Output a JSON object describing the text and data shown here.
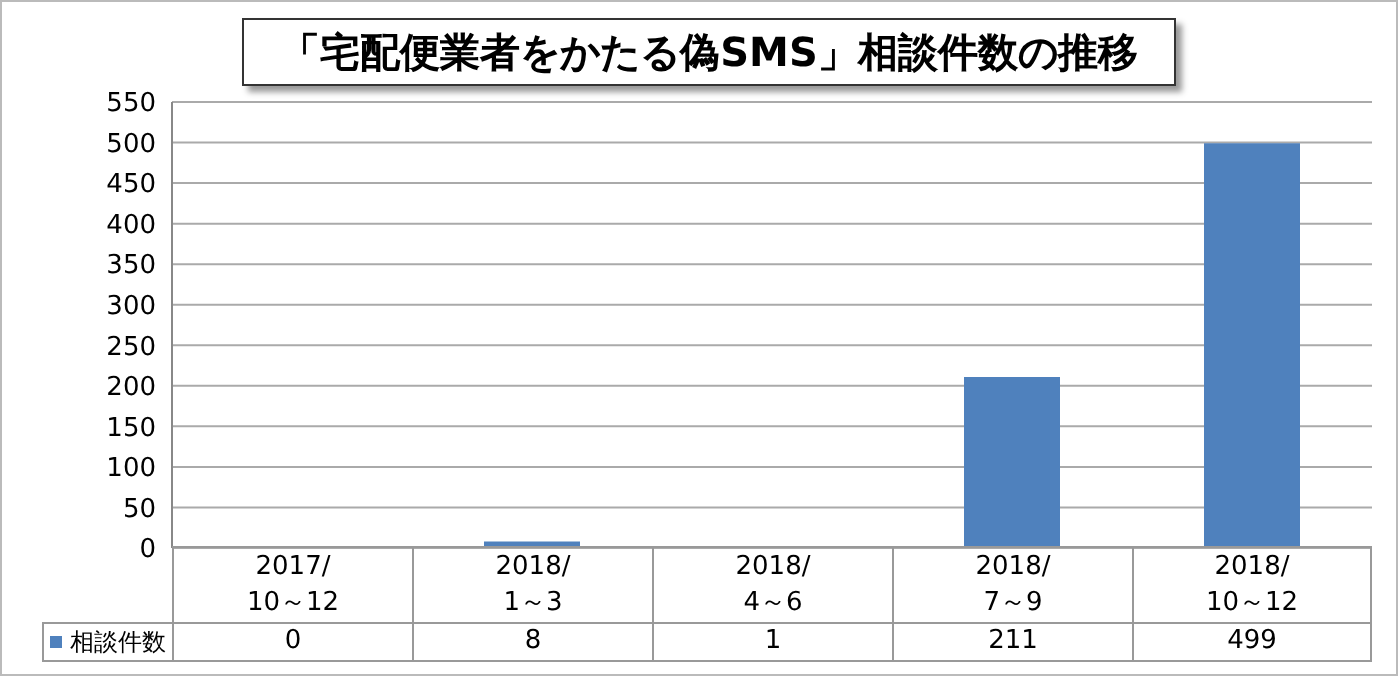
{
  "chart_data": {
    "type": "bar",
    "title": "「宅配便業者をかたる偽SMS」相談件数の推移",
    "categories": [
      "2017/10～12",
      "2018/1～3",
      "2018/4～6",
      "2018/7～9",
      "2018/10～12"
    ],
    "series": [
      {
        "name": "相談件数",
        "color": "#4f81bd",
        "values": [
          0,
          8,
          1,
          211,
          499
        ]
      }
    ],
    "ylim": [
      0,
      550
    ],
    "yticks": [
      0,
      50,
      100,
      150,
      200,
      250,
      300,
      350,
      400,
      450,
      500,
      550
    ],
    "grid": "y",
    "legend": "bottom left",
    "data_labels": true
  }
}
